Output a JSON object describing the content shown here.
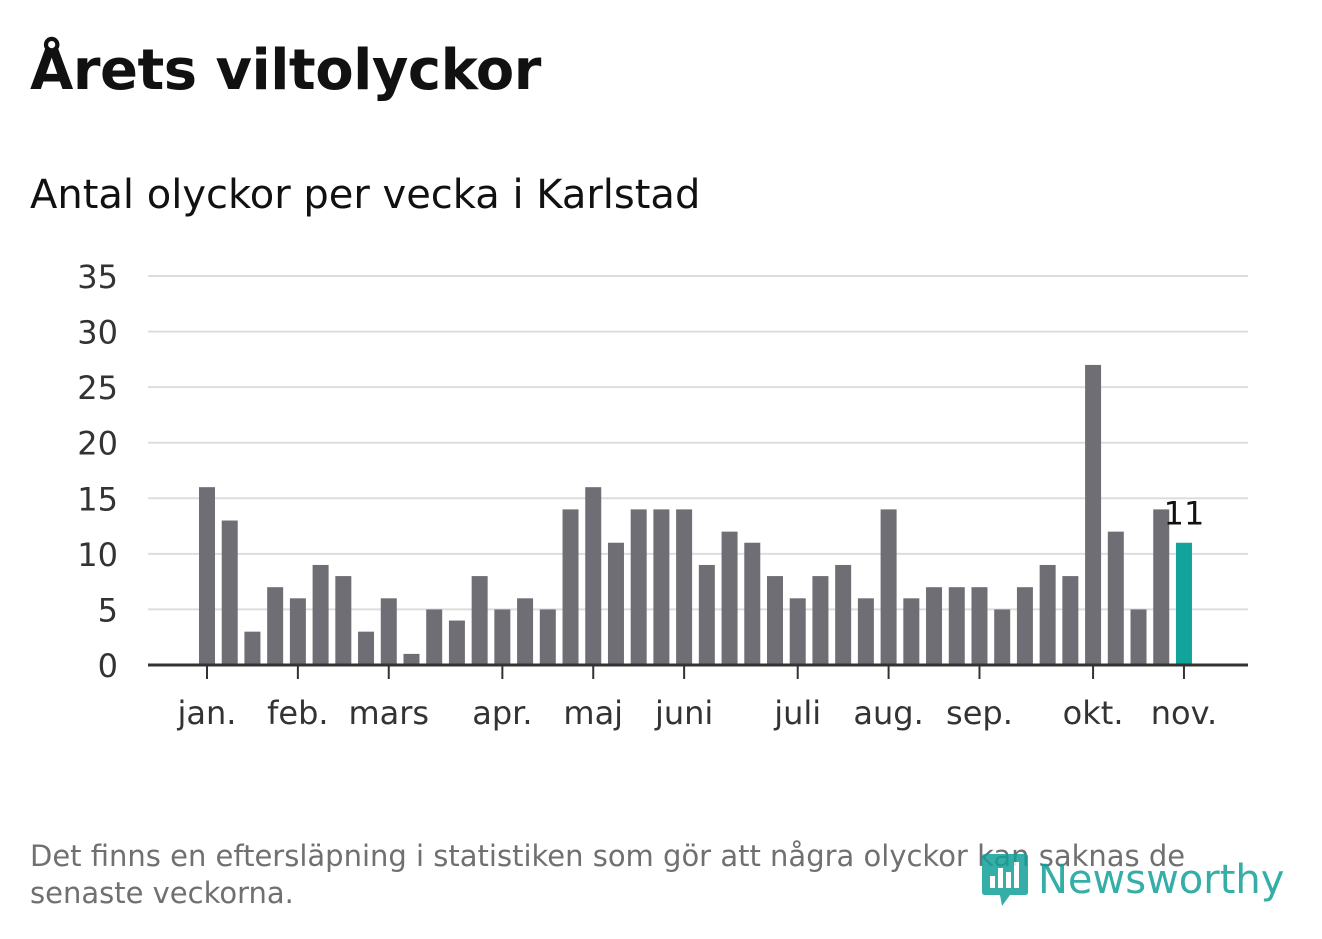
{
  "header": {
    "title": "Årets viltolyckor",
    "subtitle": "Antal olyckor per vecka i Karlstad"
  },
  "footnote": "Det finns en eftersläpning i statistiken som gör att några olyckor kan saknas de senaste veckorna.",
  "logo": {
    "text": "Newsworthy",
    "icon": "newsworthy-logo-icon"
  },
  "colors": {
    "bar": "#6f6e74",
    "highlight": "#12a39c",
    "grid": "#dddddd",
    "axis": "#333333",
    "logo": "#13a09a"
  },
  "chart_data": {
    "type": "bar",
    "title": "Antal olyckor per vecka i Karlstad",
    "xlabel": "",
    "ylabel": "",
    "ylim": [
      0,
      35
    ],
    "yticks": [
      0,
      5,
      10,
      15,
      20,
      25,
      30,
      35
    ],
    "grid": true,
    "values": [
      16,
      13,
      3,
      7,
      6,
      9,
      8,
      3,
      6,
      1,
      5,
      4,
      8,
      5,
      6,
      5,
      14,
      16,
      11,
      14,
      14,
      14,
      9,
      12,
      11,
      8,
      6,
      8,
      9,
      6,
      14,
      6,
      7,
      7,
      7,
      5,
      7,
      9,
      8,
      27,
      12,
      5,
      14,
      11
    ],
    "highlight_last": true,
    "annotation": {
      "label": "11",
      "index": 43
    },
    "month_labels": [
      {
        "label": "jan.",
        "index": 0
      },
      {
        "label": "feb.",
        "index": 4
      },
      {
        "label": "mars",
        "index": 8
      },
      {
        "label": "apr.",
        "index": 13
      },
      {
        "label": "maj",
        "index": 17
      },
      {
        "label": "juni",
        "index": 21
      },
      {
        "label": "juli",
        "index": 26
      },
      {
        "label": "aug.",
        "index": 30
      },
      {
        "label": "sep.",
        "index": 34
      },
      {
        "label": "okt.",
        "index": 39
      },
      {
        "label": "nov.",
        "index": 43
      }
    ]
  }
}
